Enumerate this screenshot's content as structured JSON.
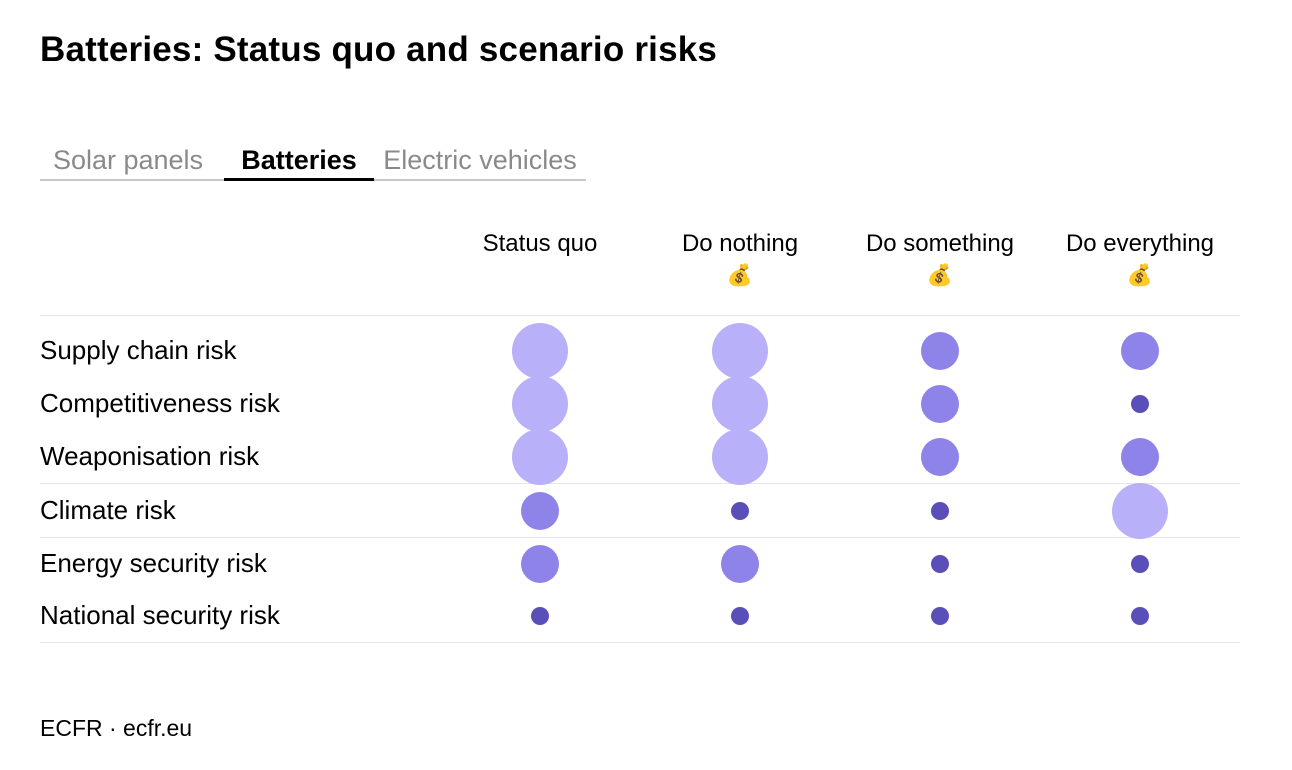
{
  "title": "Batteries: Status quo and scenario risks",
  "tabs": [
    {
      "label": "Solar panels",
      "active": false
    },
    {
      "label": "Batteries",
      "active": true
    },
    {
      "label": "Electric vehicles",
      "active": false
    }
  ],
  "footer": "ECFR · ecfr.eu",
  "chart_data": {
    "type": "table",
    "columns": [
      {
        "label": "Status quo",
        "icon": ""
      },
      {
        "label": "Do nothing",
        "icon": "💰"
      },
      {
        "label": "Do something",
        "icon": "💰"
      },
      {
        "label": "Do everything",
        "icon": "💰"
      }
    ],
    "rows": [
      {
        "label": "Supply chain risk",
        "levels": [
          "high",
          "high",
          "medium",
          "medium"
        ]
      },
      {
        "label": "Competitiveness risk",
        "levels": [
          "high",
          "high",
          "medium",
          "low"
        ]
      },
      {
        "label": "Weaponisation risk",
        "levels": [
          "high",
          "high",
          "medium",
          "medium"
        ]
      },
      {
        "label": "Climate risk",
        "levels": [
          "medium",
          "low",
          "low",
          "high"
        ]
      },
      {
        "label": "Energy security risk",
        "levels": [
          "medium",
          "medium",
          "low",
          "low"
        ]
      },
      {
        "label": "National security risk",
        "levels": [
          "low",
          "low",
          "low",
          "low"
        ]
      }
    ],
    "level_colors": {
      "high": "#b8b0f8",
      "medium": "#8e83e8",
      "low": "#5a4fb8"
    }
  }
}
